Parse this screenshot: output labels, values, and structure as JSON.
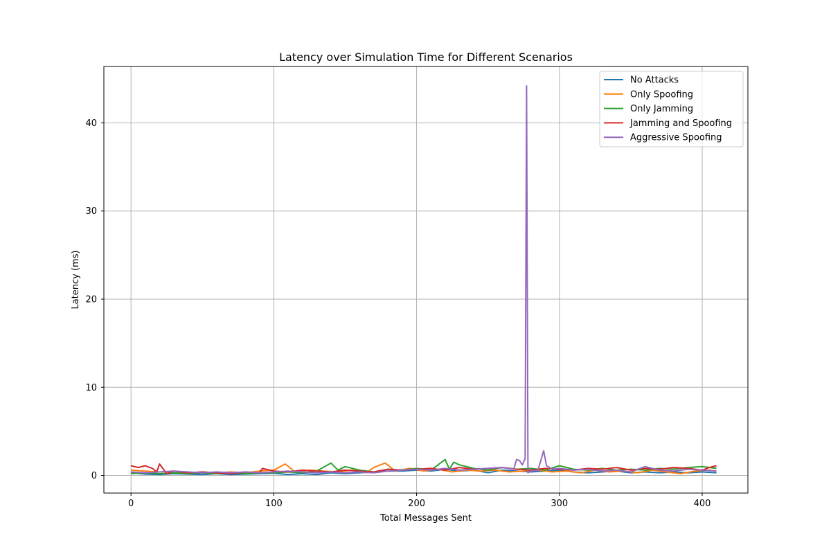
{
  "chart_data": {
    "type": "line",
    "title": "Latency over Simulation Time for Different Scenarios",
    "xlabel": "Total Messages Sent",
    "ylabel": "Latency (ms)",
    "xlim": [
      -19,
      432
    ],
    "ylim": [
      -2,
      46.4
    ],
    "xticks": [
      0,
      100,
      200,
      300,
      400
    ],
    "yticks": [
      0,
      10,
      20,
      30,
      40
    ],
    "grid": true,
    "legend_position": "top-right",
    "series": [
      {
        "name": "No Attacks",
        "color": "#1f77b4",
        "x": [
          0,
          10,
          20,
          30,
          40,
          50,
          60,
          70,
          80,
          90,
          100,
          110,
          120,
          130,
          140,
          150,
          160,
          170,
          180,
          190,
          200,
          210,
          220,
          230,
          240,
          250,
          260,
          270,
          280,
          290,
          300,
          310,
          320,
          330,
          340,
          350,
          360,
          370,
          380,
          390,
          400,
          410
        ],
        "y": [
          0.3,
          0.15,
          0.1,
          0.2,
          0.15,
          0.1,
          0.2,
          0.1,
          0.15,
          0.2,
          0.25,
          0.1,
          0.2,
          0.1,
          0.3,
          0.2,
          0.3,
          0.4,
          0.5,
          0.5,
          0.6,
          0.5,
          0.7,
          0.5,
          0.6,
          0.3,
          0.6,
          0.5,
          0.4,
          0.5,
          0.6,
          0.4,
          0.3,
          0.4,
          0.5,
          0.3,
          0.4,
          0.3,
          0.4,
          0.3,
          0.4,
          0.3
        ]
      },
      {
        "name": "Only Spoofing",
        "color": "#ff7f0e",
        "x": [
          0,
          10,
          20,
          30,
          40,
          50,
          60,
          70,
          80,
          90,
          100,
          108,
          115,
          125,
          135,
          145,
          155,
          165,
          170,
          178,
          185,
          195,
          205,
          215,
          225,
          235,
          245,
          255,
          265,
          275,
          285,
          295,
          305,
          315,
          325,
          335,
          345,
          355,
          365,
          375,
          385,
          395,
          405,
          410
        ],
        "y": [
          0.6,
          0.5,
          0.4,
          0.5,
          0.3,
          0.4,
          0.3,
          0.4,
          0.3,
          0.5,
          0.6,
          1.3,
          0.4,
          0.6,
          0.5,
          0.4,
          0.6,
          0.3,
          0.9,
          1.4,
          0.5,
          0.8,
          0.5,
          0.7,
          0.4,
          0.6,
          0.5,
          0.6,
          0.4,
          0.5,
          0.6,
          0.4,
          0.5,
          0.3,
          0.6,
          0.4,
          0.5,
          0.3,
          0.6,
          0.4,
          0.2,
          0.5,
          0.6,
          0.5
        ]
      },
      {
        "name": "Only Jamming",
        "color": "#2ca02c",
        "x": [
          0,
          10,
          20,
          30,
          40,
          50,
          60,
          70,
          80,
          90,
          100,
          110,
          120,
          130,
          140,
          145,
          150,
          160,
          170,
          180,
          190,
          200,
          210,
          220,
          223,
          226,
          230,
          240,
          250,
          260,
          270,
          280,
          290,
          300,
          310,
          320,
          330,
          340,
          350,
          360,
          370,
          380,
          390,
          400,
          410
        ],
        "y": [
          0.2,
          0.3,
          0.2,
          0.3,
          0.2,
          0.3,
          0.2,
          0.3,
          0.2,
          0.3,
          0.3,
          0.4,
          0.3,
          0.5,
          1.4,
          0.6,
          1.0,
          0.6,
          0.4,
          0.7,
          0.6,
          0.8,
          0.6,
          1.8,
          0.7,
          1.5,
          1.2,
          0.8,
          0.6,
          0.9,
          0.7,
          0.8,
          0.6,
          1.1,
          0.7,
          0.6,
          0.8,
          0.6,
          0.7,
          0.6,
          0.8,
          0.7,
          0.9,
          1.0,
          0.8
        ]
      },
      {
        "name": "Jamming and Spoofing",
        "color": "#d62728",
        "x": [
          0,
          5,
          10,
          15,
          18,
          20,
          25,
          30,
          40,
          50,
          60,
          70,
          80,
          90,
          92,
          100,
          110,
          120,
          130,
          140,
          150,
          160,
          170,
          180,
          190,
          200,
          210,
          220,
          230,
          240,
          250,
          260,
          270,
          280,
          290,
          300,
          310,
          320,
          330,
          340,
          350,
          360,
          370,
          380,
          390,
          400,
          405,
          410
        ],
        "y": [
          1.1,
          0.9,
          1.1,
          0.8,
          0.4,
          1.3,
          0.2,
          0.5,
          0.3,
          0.4,
          0.3,
          0.2,
          0.4,
          0.3,
          0.8,
          0.5,
          0.4,
          0.6,
          0.5,
          0.4,
          0.6,
          0.5,
          0.4,
          0.7,
          0.6,
          0.7,
          0.8,
          0.6,
          0.9,
          0.7,
          0.8,
          0.9,
          0.7,
          0.6,
          0.8,
          0.7,
          0.6,
          0.8,
          0.7,
          0.9,
          0.6,
          0.8,
          0.7,
          0.9,
          0.8,
          0.6,
          0.9,
          1.1
        ]
      },
      {
        "name": "Aggressive Spoofing",
        "color": "#9467bd",
        "x": [
          0,
          10,
          20,
          30,
          40,
          50,
          60,
          70,
          80,
          90,
          100,
          110,
          120,
          130,
          140,
          150,
          160,
          170,
          180,
          190,
          200,
          210,
          220,
          230,
          240,
          250,
          260,
          268,
          270,
          272,
          274,
          276,
          277,
          278,
          280,
          285,
          289,
          291,
          295,
          300,
          310,
          320,
          330,
          340,
          350,
          360,
          370,
          380,
          390,
          400,
          410
        ],
        "y": [
          0.4,
          0.3,
          0.4,
          0.5,
          0.4,
          0.3,
          0.4,
          0.3,
          0.4,
          0.3,
          0.4,
          0.5,
          0.4,
          0.3,
          0.4,
          0.3,
          0.4,
          0.3,
          0.5,
          0.6,
          0.7,
          0.6,
          0.8,
          0.6,
          0.7,
          0.8,
          0.9,
          0.7,
          1.8,
          1.7,
          1.2,
          1.9,
          44.2,
          0.3,
          0.5,
          0.6,
          2.8,
          1.1,
          0.7,
          0.8,
          0.6,
          0.7,
          0.5,
          0.6,
          0.4,
          1.0,
          0.6,
          0.5,
          0.7,
          0.6,
          0.5
        ]
      }
    ]
  }
}
